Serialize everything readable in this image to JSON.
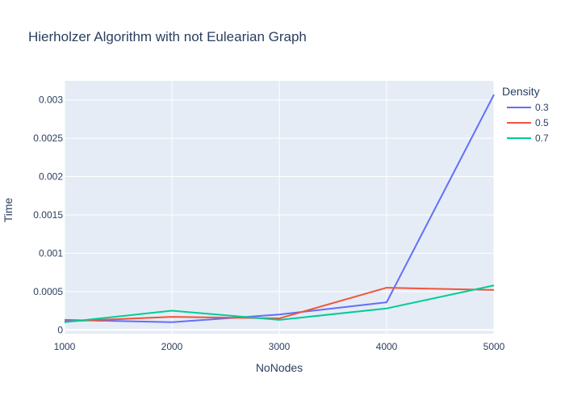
{
  "chart_data": {
    "type": "line",
    "title": "Hierholzer Algorithm with not Eulearian Graph",
    "xlabel": "NoNodes",
    "ylabel": "Time",
    "x": [
      1000,
      2000,
      3000,
      4000,
      5000
    ],
    "xlim": [
      1000,
      5000
    ],
    "ylim": [
      -5e-05,
      0.00325
    ],
    "xticks": [
      1000,
      2000,
      3000,
      4000,
      5000
    ],
    "yticks": [
      0,
      0.0005,
      0.001,
      0.0015,
      0.002,
      0.0025,
      0.003
    ],
    "ytick_labels": [
      "0",
      "0.0005",
      "0.001",
      "0.0015",
      "0.002",
      "0.0025",
      "0.003"
    ],
    "legend": {
      "title": "Density",
      "position": "right"
    },
    "grid": true,
    "plot_background": "#e5ecf6",
    "series": [
      {
        "name": "0.3",
        "color": "#636efa",
        "values": [
          0.00013,
          0.0001,
          0.0002,
          0.00036,
          0.00307
        ]
      },
      {
        "name": "0.5",
        "color": "#ef553b",
        "values": [
          0.00011,
          0.00017,
          0.00015,
          0.00055,
          0.00052
        ]
      },
      {
        "name": "0.7",
        "color": "#00cc96",
        "values": [
          0.0001,
          0.00025,
          0.00013,
          0.00028,
          0.00058
        ]
      }
    ]
  }
}
